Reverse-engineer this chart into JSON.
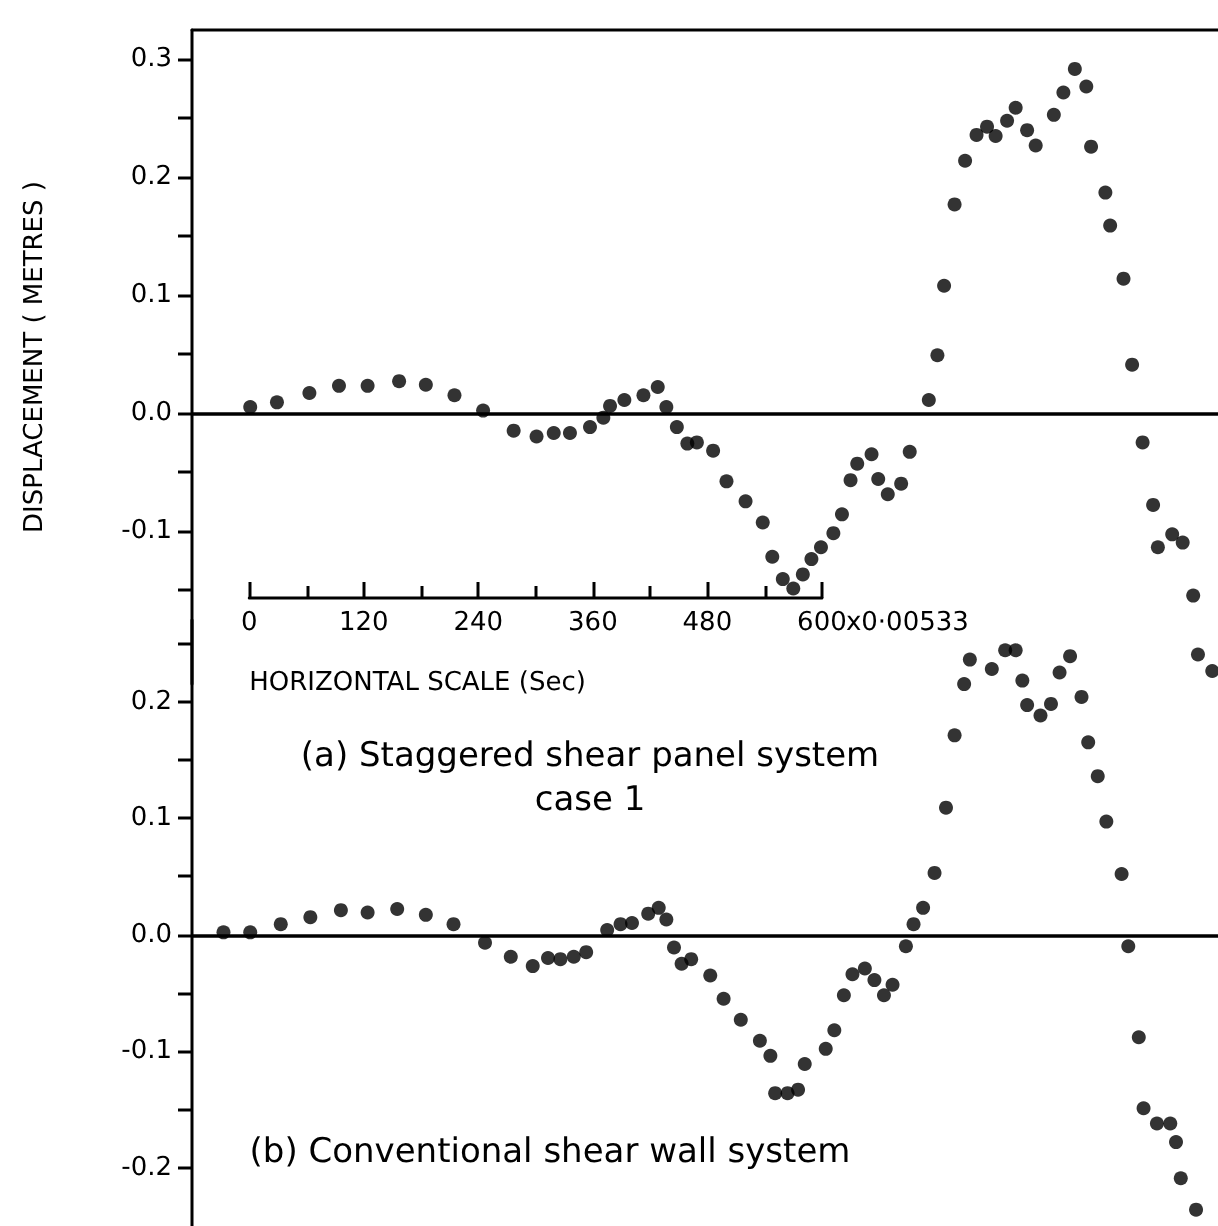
{
  "chart_data": [
    {
      "type": "scatter",
      "title": "(a) Staggered shear panel system\ncase 1",
      "xlabel": "HORIZONTAL SCALE (Sec)",
      "ylabel": "DISPLACEMENT ( METRES )",
      "annotations": [
        "x0·00533"
      ],
      "marker": "circle",
      "xlim": [
        -60,
        1015
      ],
      "xticks": [
        0,
        120,
        240,
        360,
        480,
        600
      ],
      "ylim": [
        -0.23,
        0.325
      ],
      "yticks": [
        {
          "value": -0.15,
          "label": null
        },
        -0.1,
        {
          "value": -0.05,
          "label": null
        },
        {
          "value": 0,
          "label": "0.0"
        },
        {
          "value": 0.05,
          "label": null
        },
        0.1,
        {
          "value": 0.15,
          "label": null
        },
        0.2,
        {
          "value": 0.25,
          "label": null
        },
        0.3
      ],
      "ref_lines": [
        {
          "axis": "y",
          "value": 0,
          "color": "#000000",
          "line_style": "solid"
        }
      ],
      "series": [
        {
          "color": "#000000",
          "x": [
            1,
            29,
            63,
            94,
            124,
            157,
            185,
            215,
            245,
            277,
            301,
            319,
            336,
            357,
            371,
            378,
            393,
            413,
            428,
            437,
            448,
            459,
            469,
            486,
            500,
            520,
            538,
            548,
            559,
            570,
            580,
            589,
            599,
            612,
            621,
            630,
            637,
            652,
            659,
            669,
            683,
            692,
            712,
            721,
            728,
            739,
            750,
            762,
            773,
            782,
            794,
            803,
            815,
            824,
            843,
            853,
            865,
            877,
            882,
            897,
            902,
            916,
            925,
            936,
            947,
            952,
            967,
            978,
            989,
            994,
            1009
          ],
          "values": [
            0.005,
            0.009,
            0.017,
            0.023,
            0.023,
            0.027,
            0.024,
            0.015,
            0.002,
            -0.015,
            -0.02,
            -0.017,
            -0.017,
            -0.012,
            -0.004,
            0.006,
            0.011,
            0.015,
            0.022,
            0.005,
            -0.012,
            -0.026,
            -0.025,
            -0.032,
            -0.058,
            -0.075,
            -0.093,
            -0.122,
            -0.141,
            -0.149,
            -0.137,
            -0.124,
            -0.114,
            -0.102,
            -0.086,
            -0.057,
            -0.043,
            -0.035,
            -0.056,
            -0.069,
            -0.06,
            -0.033,
            0.011,
            0.049,
            0.108,
            0.177,
            0.214,
            0.236,
            0.243,
            0.235,
            0.248,
            0.259,
            0.24,
            0.227,
            0.253,
            0.272,
            0.292,
            0.277,
            0.226,
            0.187,
            0.159,
            0.114,
            0.041,
            -0.025,
            -0.078,
            -0.114,
            -0.103,
            -0.11,
            -0.155,
            -0.205,
            -0.219
          ]
        }
      ]
    },
    {
      "type": "scatter",
      "title": "(b) Conventional shear wall system",
      "marker": "circle",
      "tick_labels": "y",
      "xlim": [
        -60,
        1015
      ],
      "ylim": [
        -0.25,
        0.27
      ],
      "yticks": [
        -0.2,
        {
          "value": -0.15,
          "label": null
        },
        -0.1,
        {
          "value": -0.05,
          "label": null
        },
        {
          "value": 0,
          "label": "0.0"
        },
        {
          "value": 0.05,
          "label": null
        },
        0.1,
        {
          "value": 0.15,
          "label": null
        },
        0.2,
        {
          "value": 0.25,
          "label": null
        }
      ],
      "ref_lines": [
        {
          "axis": "y",
          "value": 0,
          "color": "#000000",
          "line_style": "solid"
        }
      ],
      "series": [
        {
          "color": "#000000",
          "x": [
            -27,
            1,
            33,
            64,
            96,
            124,
            155,
            185,
            214,
            247,
            274,
            297,
            313,
            326,
            340,
            353,
            375,
            389,
            401,
            418,
            429,
            437,
            445,
            453,
            463,
            483,
            497,
            515,
            535,
            546,
            551,
            564,
            575,
            582,
            604,
            613,
            623,
            632,
            645,
            655,
            665,
            674,
            688,
            696,
            706,
            718,
            730,
            739,
            749,
            755,
            778,
            792,
            803,
            810,
            815,
            829,
            840,
            849,
            860,
            872,
            879,
            889,
            898,
            914,
            921,
            932,
            937,
            951,
            965,
            971,
            976,
            992
          ],
          "values": [
            0.002,
            0.002,
            0.009,
            0.015,
            0.021,
            0.019,
            0.022,
            0.017,
            0.009,
            -0.007,
            -0.019,
            -0.027,
            -0.02,
            -0.021,
            -0.019,
            -0.015,
            0.004,
            0.009,
            0.01,
            0.018,
            0.023,
            0.013,
            -0.011,
            -0.025,
            -0.021,
            -0.035,
            -0.055,
            -0.073,
            -0.091,
            -0.104,
            -0.136,
            -0.136,
            -0.133,
            -0.111,
            -0.098,
            -0.082,
            -0.052,
            -0.034,
            -0.029,
            -0.039,
            -0.052,
            -0.043,
            -0.01,
            0.009,
            0.023,
            0.053,
            0.109,
            0.171,
            0.215,
            0.236,
            0.228,
            0.244,
            0.244,
            0.218,
            0.197,
            0.188,
            0.198,
            0.225,
            0.239,
            0.204,
            0.165,
            0.136,
            0.097,
            0.052,
            -0.01,
            -0.088,
            -0.149,
            -0.162,
            -0.162,
            -0.178,
            -0.209,
            -0.236
          ]
        }
      ]
    }
  ]
}
